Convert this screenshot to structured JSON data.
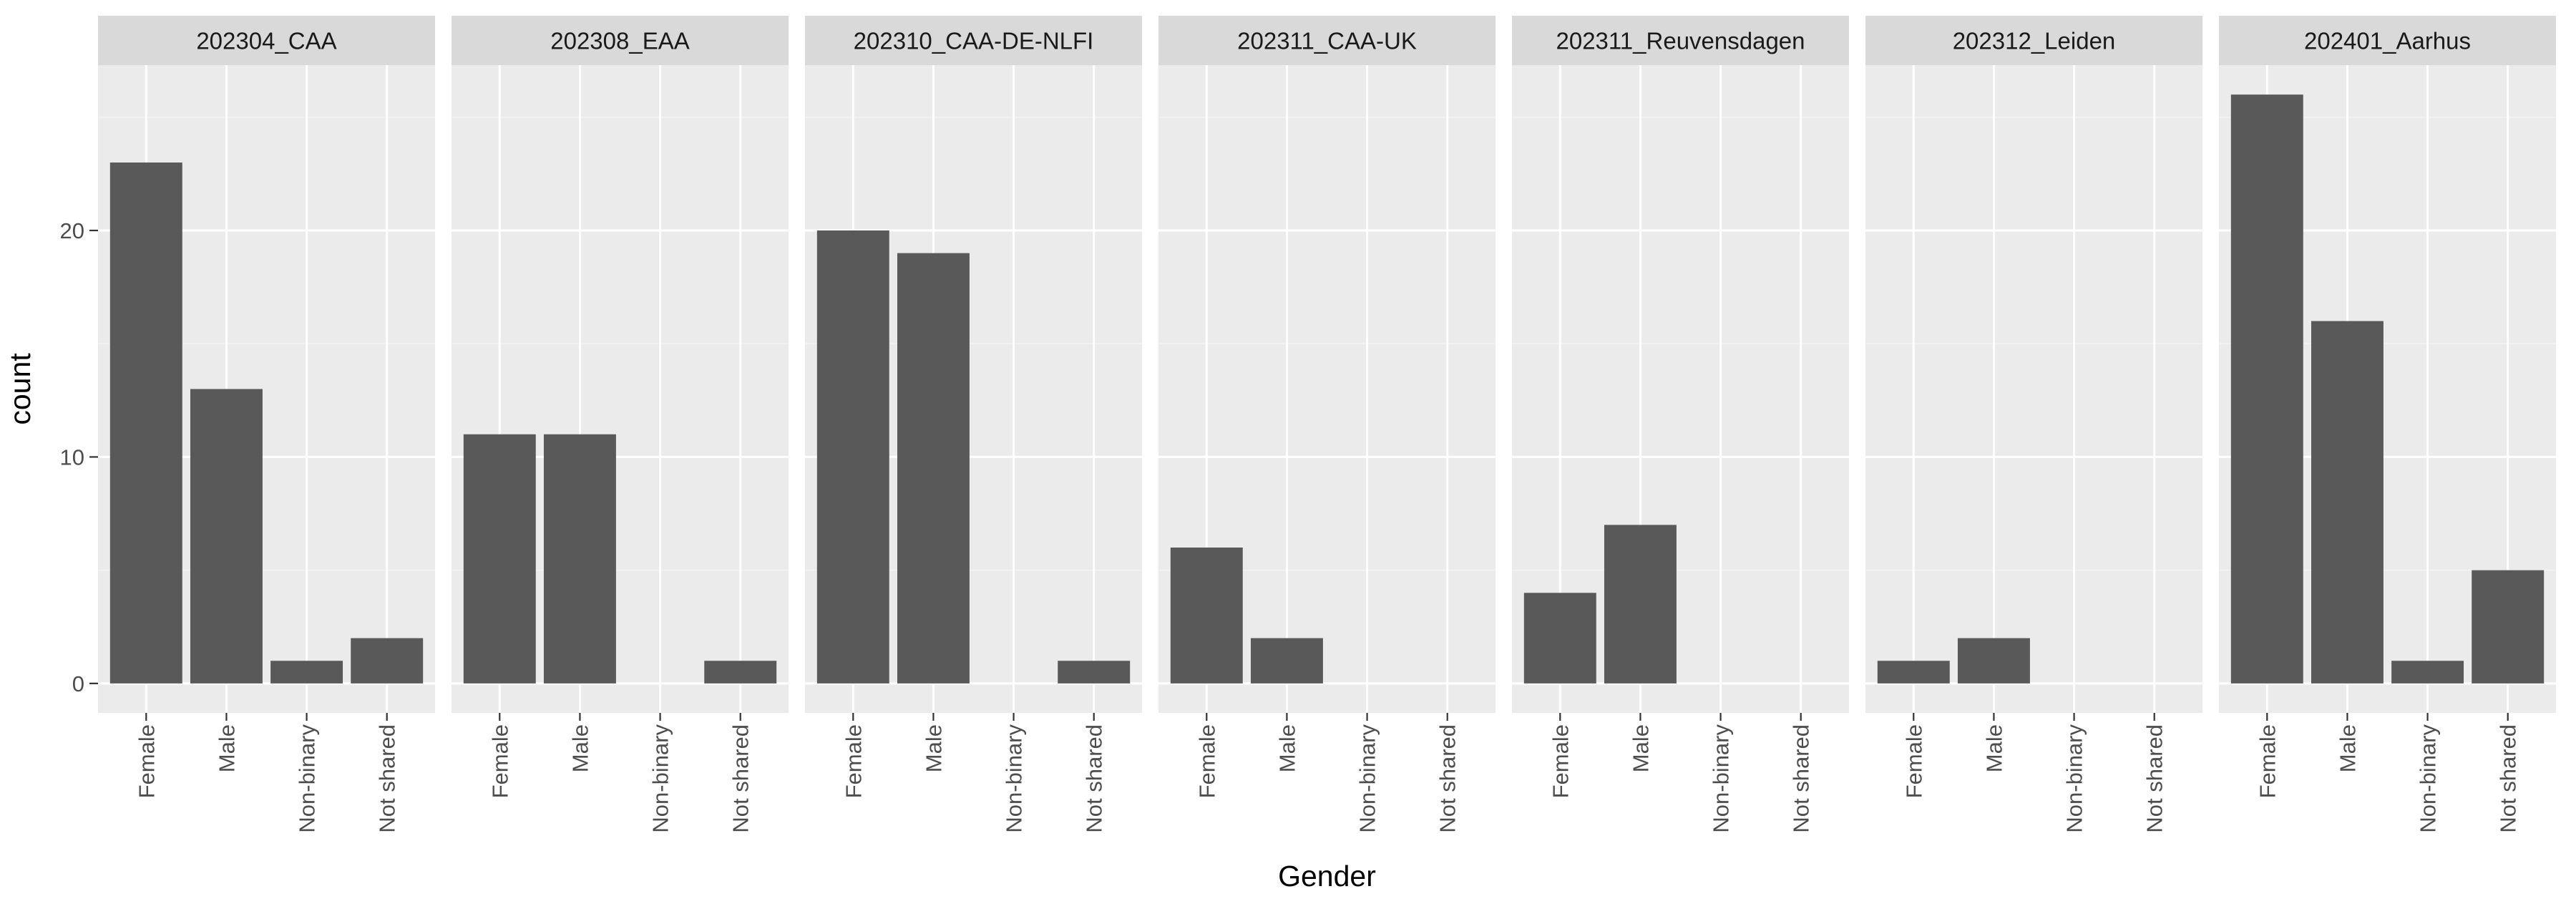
{
  "chart_data": {
    "type": "bar",
    "xlabel": "Gender",
    "ylabel": "count",
    "categories": [
      "Female",
      "Male",
      "Non-binary",
      "Not shared"
    ],
    "y_ticks": [
      0,
      10,
      20
    ],
    "ylim": [
      -1.3,
      27.3
    ],
    "grid": true,
    "colors": {
      "panel_background": "#ebebeb",
      "strip_background": "#d9d9d9",
      "bar": "#595959",
      "grid_major": "#ffffff",
      "grid_minor": "#f2f2f2"
    },
    "panels": [
      {
        "title": "202304_CAA",
        "values": [
          23,
          13,
          1,
          2
        ]
      },
      {
        "title": "202308_EAA",
        "values": [
          11,
          11,
          0,
          1
        ]
      },
      {
        "title": "202310_CAA-DE-NLFI",
        "values": [
          20,
          19,
          0,
          1
        ]
      },
      {
        "title": "202311_CAA-UK",
        "values": [
          6,
          2,
          0,
          0
        ]
      },
      {
        "title": "202311_Reuvensdagen",
        "values": [
          4,
          7,
          0,
          0
        ]
      },
      {
        "title": "202312_Leiden",
        "values": [
          1,
          2,
          0,
          0
        ]
      },
      {
        "title": "202401_Aarhus",
        "values": [
          26,
          16,
          1,
          5
        ]
      }
    ]
  }
}
